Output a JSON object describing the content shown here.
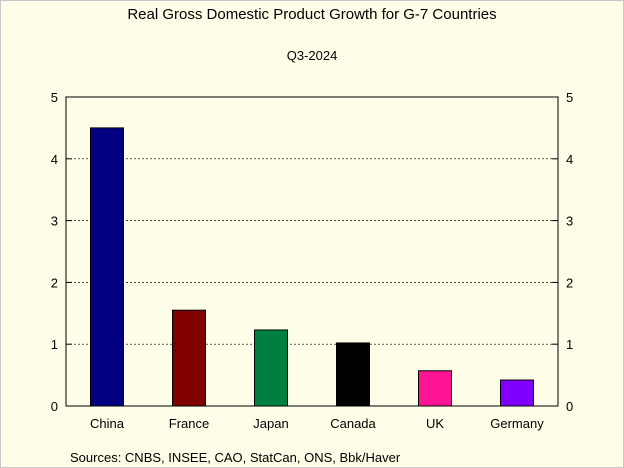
{
  "title": "Real Gross Domestic Product Growth for G-7 Countries",
  "subtitle": "Q3-2024",
  "source": "Sources:  CNBS, INSEE, CAO, StatCan, ONS, Bbk/Haver",
  "chart_data": {
    "type": "bar",
    "title": "Real Gross Domestic Product Growth for G-7 Countries",
    "subtitle": "Q3-2024",
    "categories": [
      "China",
      "France",
      "Japan",
      "Canada",
      "UK",
      "Germany"
    ],
    "values": [
      4.5,
      1.55,
      1.23,
      1.02,
      0.57,
      0.42
    ],
    "colors": [
      "#000080",
      "#800000",
      "#008040",
      "#000000",
      "#ff1493",
      "#8000ff"
    ],
    "ylim": [
      0,
      5
    ],
    "yticks": [
      "0",
      "1",
      "2",
      "3",
      "4",
      "5"
    ],
    "grid": true,
    "right_axis_mirrored": true
  }
}
